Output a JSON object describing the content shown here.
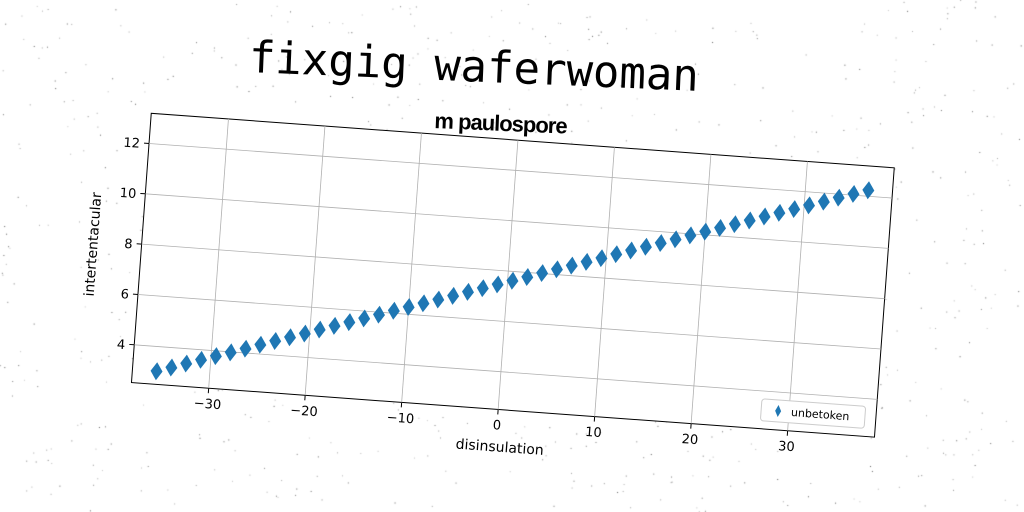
{
  "title": "fixgig waferwoman",
  "subtitle": "m paulospore",
  "chart_data": {
    "type": "scatter",
    "xlabel": "disinsulation",
    "ylabel": "intertentacular",
    "xlim": [
      -38,
      39
    ],
    "ylim": [
      2.5,
      13.2
    ],
    "xticks": [
      -30,
      -20,
      -10,
      0,
      10,
      20,
      30
    ],
    "xtick_labels": [
      "−30",
      "−20",
      "−10",
      "0",
      "10",
      "20",
      "30"
    ],
    "yticks": [
      4,
      6,
      8,
      10,
      12
    ],
    "ytick_labels": [
      "4",
      "6",
      "8",
      "10",
      "12"
    ],
    "grid": true,
    "legend_position": "lower-right",
    "marker": "thin-diamond",
    "series": [
      {
        "name": "unbetoken",
        "color": "#1f77b4",
        "x": [
          -35.5,
          -34.0,
          -32.5,
          -31.0,
          -29.5,
          -28.0,
          -26.5,
          -25.0,
          -23.5,
          -22.0,
          -20.5,
          -19.0,
          -17.5,
          -16.0,
          -14.5,
          -13.0,
          -11.5,
          -10.0,
          -8.5,
          -7.0,
          -5.5,
          -4.0,
          -2.5,
          -1.0,
          0.5,
          2.0,
          3.5,
          5.0,
          6.5,
          8.0,
          9.5,
          11.0,
          12.5,
          14.0,
          15.5,
          17.0,
          18.5,
          20.0,
          21.5,
          23.0,
          24.5,
          26.0,
          27.5,
          29.0,
          30.5,
          32.0,
          33.5,
          35.0,
          36.5
        ],
        "y": [
          3.02,
          3.21,
          3.41,
          3.6,
          3.79,
          3.98,
          4.17,
          4.37,
          4.56,
          4.75,
          4.94,
          5.14,
          5.33,
          5.52,
          5.71,
          5.9,
          6.1,
          6.29,
          6.48,
          6.67,
          6.86,
          7.06,
          7.25,
          7.44,
          7.63,
          7.82,
          8.02,
          8.21,
          8.4,
          8.59,
          8.78,
          8.98,
          9.17,
          9.36,
          9.55,
          9.74,
          9.94,
          10.13,
          10.32,
          10.51,
          10.7,
          10.9,
          11.09,
          11.28,
          11.47,
          11.66,
          11.86,
          12.05,
          12.24
        ]
      }
    ]
  }
}
